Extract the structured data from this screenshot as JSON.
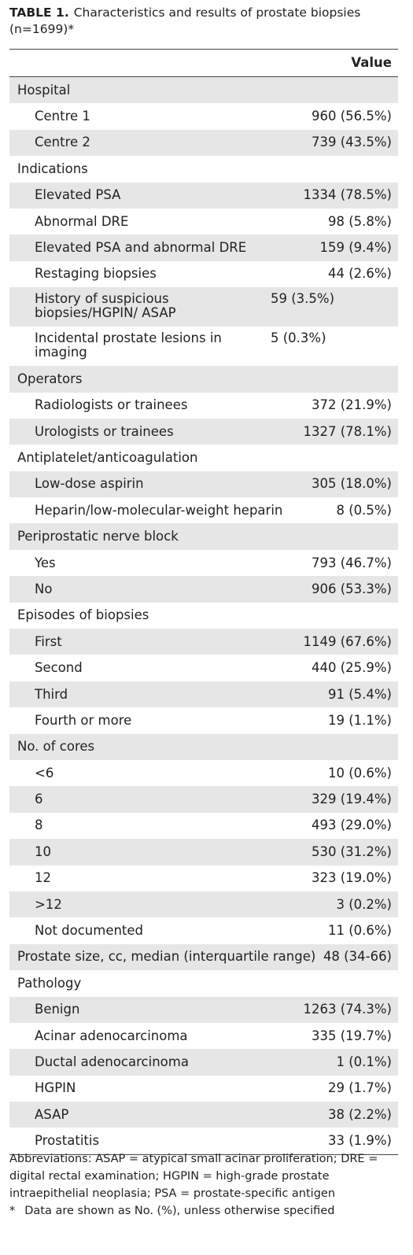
{
  "title": {
    "number": "TABLE 1.",
    "text": "Characteristics and results of prostate biopsies (n=1699)*"
  },
  "table": {
    "column_header": "Value",
    "groups": [
      {
        "label": "Hospital",
        "items": [
          {
            "label": "Centre 1",
            "value": "960 (56.5%)"
          },
          {
            "label": "Centre 2",
            "value": "739 (43.5%)"
          }
        ]
      },
      {
        "label": "Indications",
        "items": [
          {
            "label": "Elevated PSA",
            "value": "1334 (78.5%)"
          },
          {
            "label": "Abnormal DRE",
            "value": "98 (5.8%)"
          },
          {
            "label": "Elevated PSA and abnormal DRE",
            "value": "159 (9.4%)"
          },
          {
            "label": "Restaging biopsies",
            "value": "44 (2.6%)"
          },
          {
            "label": "History of suspicious biopsies/HGPIN/ ASAP",
            "value": "59 (3.5%)"
          },
          {
            "label": "Incidental prostate lesions in imaging",
            "value": "5 (0.3%)"
          }
        ]
      },
      {
        "label": "Operators",
        "items": [
          {
            "label": "Radiologists or trainees",
            "value": "372 (21.9%)"
          },
          {
            "label": "Urologists or trainees",
            "value": "1327 (78.1%)"
          }
        ]
      },
      {
        "label": "Antiplatelet/anticoagulation",
        "items": [
          {
            "label": "Low-dose aspirin",
            "value": "305 (18.0%)"
          },
          {
            "label": "Heparin/low-molecular-weight heparin",
            "value": "8 (0.5%)"
          }
        ]
      },
      {
        "label": "Periprostatic nerve block",
        "items": [
          {
            "label": "Yes",
            "value": "793 (46.7%)"
          },
          {
            "label": "No",
            "value": "906 (53.3%)"
          }
        ]
      },
      {
        "label": "Episodes of biopsies",
        "items": [
          {
            "label": "First",
            "value": "1149 (67.6%)"
          },
          {
            "label": "Second",
            "value": "440 (25.9%)"
          },
          {
            "label": "Third",
            "value": "91 (5.4%)"
          },
          {
            "label": "Fourth or more",
            "value": "19 (1.1%)"
          }
        ]
      },
      {
        "label": "No. of cores",
        "items": [
          {
            "label": "<6",
            "value": "10 (0.6%)"
          },
          {
            "label": "6",
            "value": "329 (19.4%)"
          },
          {
            "label": "8",
            "value": "493 (29.0%)"
          },
          {
            "label": "10",
            "value": "530 (31.2%)"
          },
          {
            "label": "12",
            "value": "323 (19.0%)"
          },
          {
            "label": ">12",
            "value": "3 (0.2%)"
          },
          {
            "label": "Not documented",
            "value": "11 (0.6%)"
          }
        ]
      },
      {
        "label": "Prostate size, cc, median (interquartile range)",
        "value": "48 (34-66)"
      },
      {
        "label": "Pathology",
        "items": [
          {
            "label": "Benign",
            "value": "1263 (74.3%)"
          },
          {
            "label": "Acinar adenocarcinoma",
            "value": "335 (19.7%)"
          },
          {
            "label": "Ductal adenocarcinoma",
            "value": "1 (0.1%)"
          },
          {
            "label": "HGPIN",
            "value": "29 (1.7%)"
          },
          {
            "label": "ASAP",
            "value": "38 (2.2%)"
          },
          {
            "label": "Prostatitis",
            "value": "33 (1.9%)"
          }
        ]
      }
    ]
  },
  "footnotes": {
    "abbreviations": "Abbreviations: ASAP = atypical small acinar proliferation; DRE = digital rectal examination; HGPIN = high-grade prostate intraepithelial neoplasia; PSA = prostate-specific antigen",
    "symbol": "*",
    "note": "Data are shown as No. (%), unless otherwise specified"
  }
}
